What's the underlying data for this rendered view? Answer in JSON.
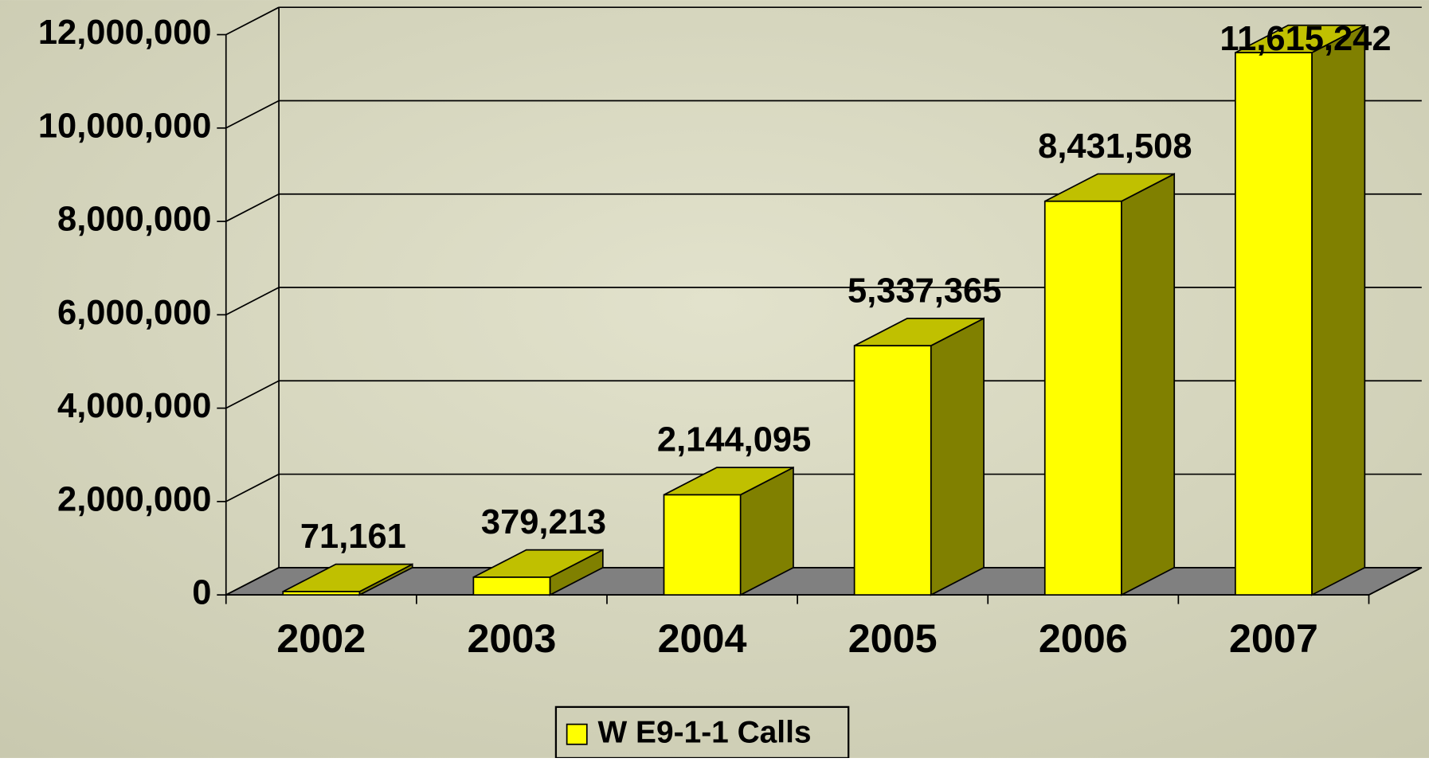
{
  "chart_data": {
    "type": "bar3d",
    "categories": [
      "2002",
      "2003",
      "2004",
      "2005",
      "2006",
      "2007"
    ],
    "series": [
      {
        "name": "W E9-1-1 Calls",
        "color": "#ffff00",
        "values": [
          71161,
          379213,
          2144095,
          5337365,
          8431508,
          11615242
        ],
        "value_labels": [
          "71,161",
          "379,213",
          "2,144,095",
          "5,337,365",
          "8,431,508",
          "11,615,242"
        ]
      }
    ],
    "ylim": [
      0,
      12000000
    ],
    "yticks": [
      0,
      {
        "value": 2000000,
        "label": "2,000,000"
      },
      {
        "value": 4000000,
        "label": "4,000,000"
      },
      {
        "value": 6000000,
        "label": "6,000,000"
      },
      {
        "value": 8000000,
        "label": "8,000,000"
      },
      {
        "value": 10000000,
        "label": "10,000,000"
      },
      {
        "value": 12000000,
        "label": "12,000,000"
      }
    ],
    "grid": true,
    "legend": "bottom"
  }
}
